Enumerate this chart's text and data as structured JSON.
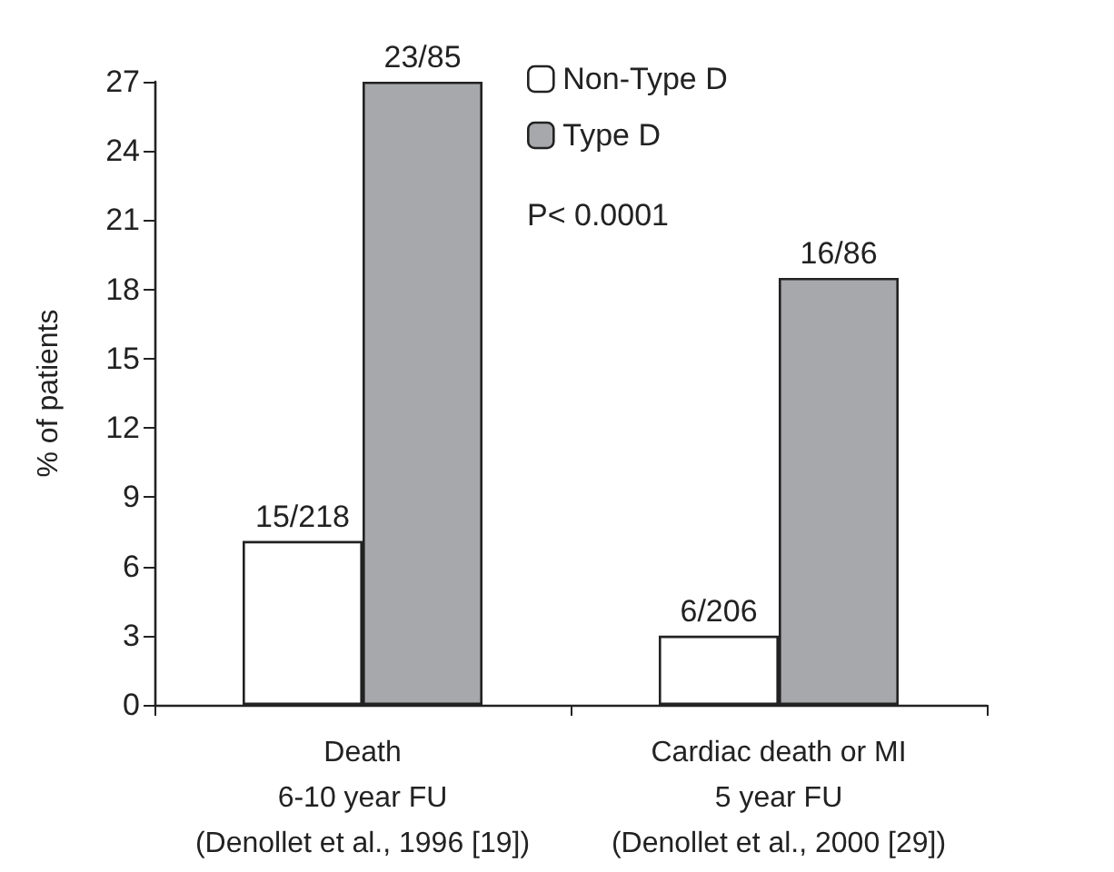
{
  "chart_data": {
    "type": "bar",
    "ylabel": "% of patients",
    "categories": [
      "Death\n6-10 year FU\n(Denollet et al., 1996 [19])",
      "Cardiac death or MI\n5 year FU\n(Denollet et al., 2000 [29])"
    ],
    "series": [
      {
        "name": "Non-Type D",
        "color": "#ffffff",
        "values": [
          7.1,
          3.0
        ],
        "value_labels": [
          "15/218",
          "6/206"
        ]
      },
      {
        "name": "Type D",
        "color": "#a7a8ab",
        "values": [
          27.0,
          18.5
        ],
        "value_labels": [
          "23/85",
          "16/86"
        ]
      }
    ],
    "ylim": [
      0,
      27
    ],
    "yticks": [
      0,
      3,
      6,
      9,
      12,
      15,
      18,
      21,
      24,
      27
    ],
    "grid": false,
    "legend": "top right",
    "annotations": [
      "P< 0.0001"
    ]
  }
}
